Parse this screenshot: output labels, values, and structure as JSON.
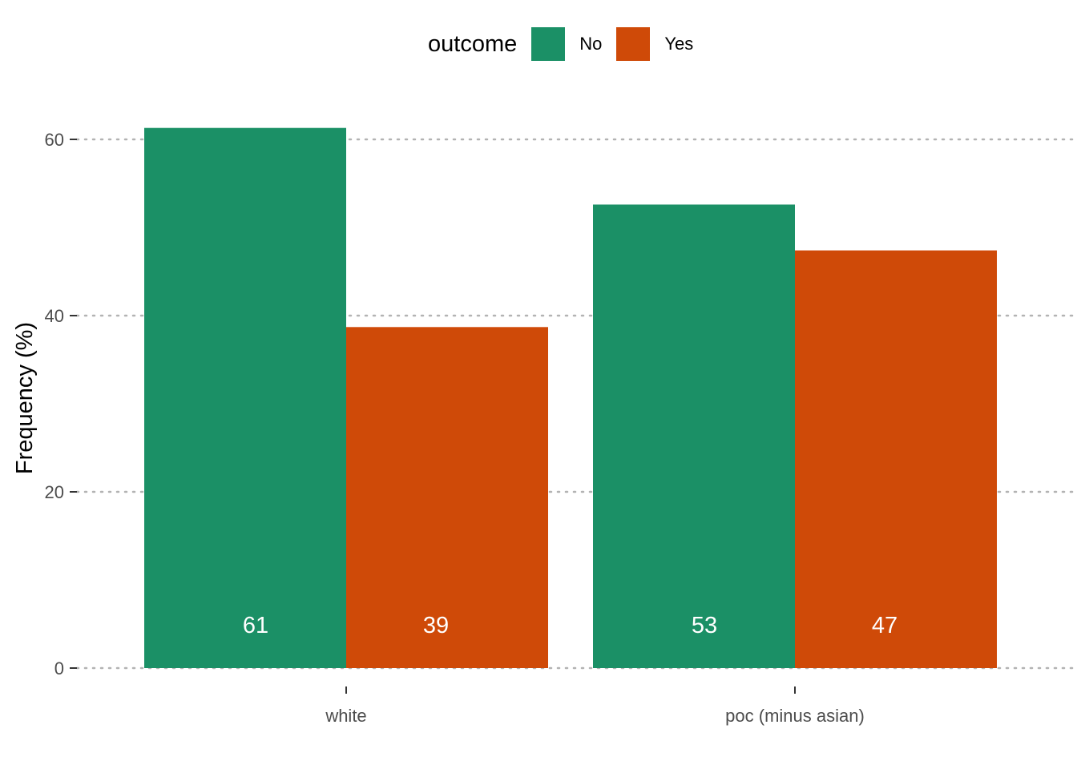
{
  "chart_data": {
    "type": "bar",
    "categories": [
      "white",
      "poc (minus asian)"
    ],
    "series": [
      {
        "name": "No",
        "color": "#1b9066",
        "values": [
          61.3,
          52.6
        ],
        "labels": [
          "61",
          "53"
        ]
      },
      {
        "name": "Yes",
        "color": "#cf4a08",
        "values": [
          38.7,
          47.4
        ],
        "labels": [
          "39",
          "47"
        ]
      }
    ],
    "ylabel": "Frequency (%)",
    "xlabel": "",
    "ylim": [
      0,
      63
    ],
    "yticks": [
      0,
      20,
      40,
      60
    ],
    "legend": {
      "title": "outcome",
      "position": "top"
    },
    "grid": "horizontal dotted"
  }
}
